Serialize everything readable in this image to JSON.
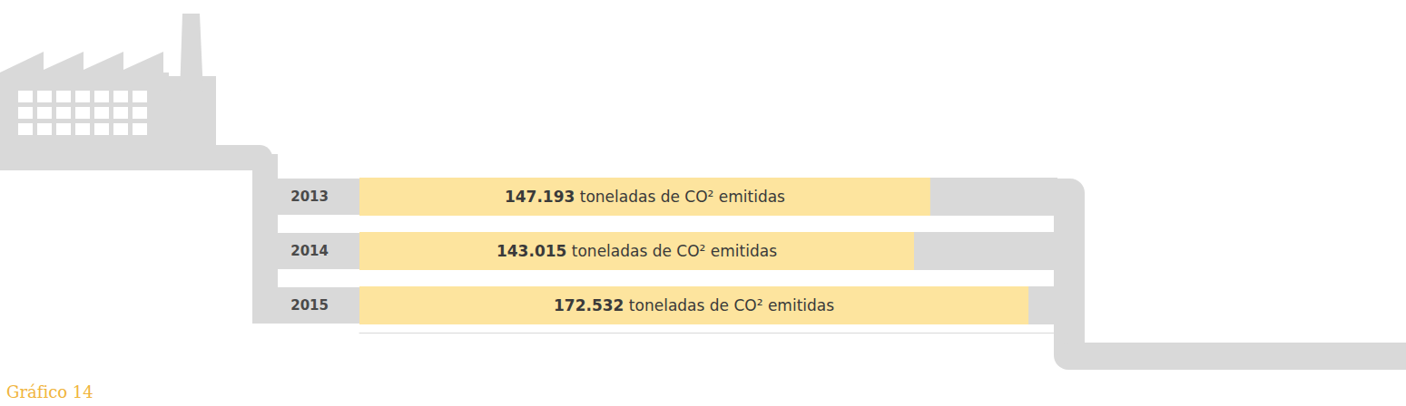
{
  "chart_data": {
    "type": "bar",
    "title": "Gráfico 14",
    "orientation": "horizontal",
    "categories": [
      "2013",
      "2014",
      "2015"
    ],
    "values": [
      147193,
      143015,
      172532
    ],
    "value_labels": [
      "147.193 toneladas de CO² emitidas",
      "143.015 toneladas de CO² emitidas",
      "172.532 toneladas de CO² emitidas"
    ],
    "color": "#fde49e",
    "xlim": [
      0,
      180000
    ],
    "data_labels": true,
    "tick_labels": "y",
    "grid": false
  }
}
